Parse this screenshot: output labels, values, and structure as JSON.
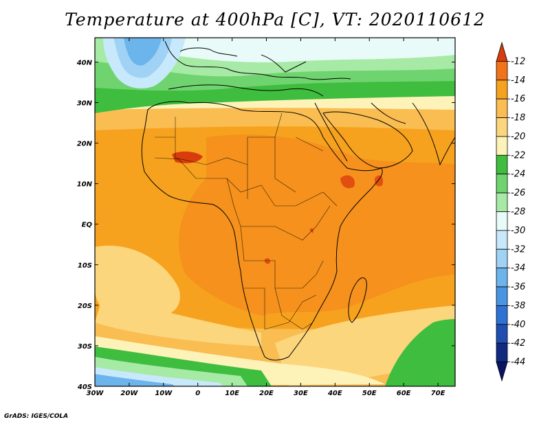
{
  "title": "Temperature at 400hPa [C], VT: 2020110612",
  "credit": "GrADS: IGES/COLA",
  "map": {
    "lat_labels": [
      "40N",
      "30N",
      "20N",
      "10N",
      "EQ",
      "10S",
      "20S",
      "30S",
      "40S"
    ],
    "lat_values": [
      40,
      30,
      20,
      10,
      0,
      -10,
      -20,
      -30,
      -40
    ],
    "lon_labels": [
      "30W",
      "20W",
      "10W",
      "0",
      "10E",
      "20E",
      "30E",
      "40E",
      "50E",
      "60E",
      "70E"
    ],
    "lon_values": [
      -30,
      -20,
      -10,
      0,
      10,
      20,
      30,
      40,
      50,
      60,
      70
    ],
    "lon_range": [
      -30,
      75
    ],
    "lat_range": [
      -40,
      46
    ]
  },
  "colorbar": {
    "labels": [
      "-12",
      "-14",
      "-16",
      "-18",
      "-20",
      "-22",
      "-24",
      "-26",
      "-28",
      "-30",
      "-32",
      "-34",
      "-36",
      "-38",
      "-40",
      "-42",
      "-44"
    ],
    "colors": [
      "#d93c0c",
      "#f2741a",
      "#f7a21e",
      "#f9bd52",
      "#fbd67c",
      "#fdf2b8",
      "#3ebd3e",
      "#6fd46f",
      "#a6eaa6",
      "#e8fbf8",
      "#c8e9fb",
      "#9fd2f5",
      "#6cb4ec",
      "#4a95e3",
      "#2e72d4",
      "#1e4fb0",
      "#0f2a80",
      "#0a1562"
    ]
  },
  "chart_data": {
    "type": "heatmap",
    "title": "Temperature at 400hPa [C], VT: 2020110612",
    "x_range": [
      -30,
      75
    ],
    "y_range": [
      -40,
      46
    ],
    "x_ticks": [
      "30W",
      "20W",
      "10W",
      "0",
      "10E",
      "20E",
      "30E",
      "40E",
      "50E",
      "60E",
      "70E"
    ],
    "y_ticks": [
      "40N",
      "30N",
      "20N",
      "10N",
      "EQ",
      "10S",
      "20S",
      "30S",
      "40S"
    ],
    "color_levels": [
      -12,
      -14,
      -16,
      -18,
      -20,
      -22,
      -24,
      -26,
      -28,
      -30,
      -32,
      -34,
      -36,
      -38,
      -40,
      -42,
      -44
    ]
  }
}
